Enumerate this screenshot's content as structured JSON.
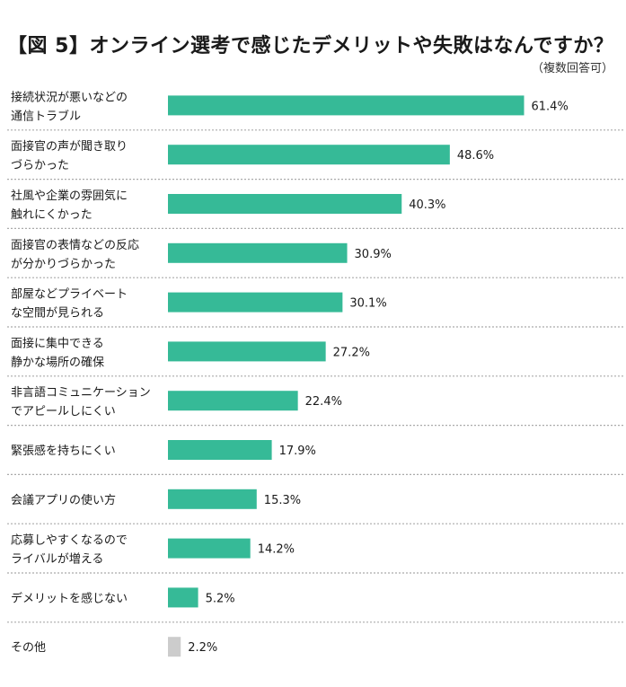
{
  "title": "【図 5】オンライン選考で感じたデメリットや失敗はなんですか？",
  "note": "（複数回答可）",
  "colors": {
    "bar": "#36ba97",
    "bar_other": "#cccccc",
    "divider": "#aaaaaa",
    "text": "#1a1a1a"
  },
  "chart_data": {
    "type": "bar",
    "orientation": "horizontal",
    "title": "【図 5】オンライン選考で感じたデメリットや失敗はなんですか？",
    "xlim": [
      0,
      70
    ],
    "value_suffix": "%",
    "categories": [
      [
        "接続状況が悪いなどの",
        "通信トラブル"
      ],
      [
        "面接官の声が聞き取り",
        "づらかった"
      ],
      [
        "社風や企業の雰囲気に",
        "触れにくかった"
      ],
      [
        "面接官の表情などの反応",
        "が分かりづらかった"
      ],
      [
        "部屋などプライベート",
        "な空間が見られる"
      ],
      [
        "面接に集中できる",
        "静かな場所の確保"
      ],
      [
        "非言語コミュニケーション",
        "でアピールしにくい"
      ],
      [
        "緊張感を持ちにくい"
      ],
      [
        "会議アプリの使い方"
      ],
      [
        "応募しやすくなるので",
        "ライバルが増える"
      ],
      [
        "デメリットを感じない"
      ],
      [
        "その他"
      ]
    ],
    "values": [
      61.4,
      48.6,
      40.3,
      30.9,
      30.1,
      27.2,
      22.4,
      17.9,
      15.3,
      14.2,
      5.2,
      2.2
    ],
    "labels": [
      "61.4%",
      "48.6%",
      "40.3%",
      "30.9%",
      "30.1%",
      "27.2%",
      "22.4%",
      "17.9%",
      "15.3%",
      "14.2%",
      "5.2%",
      "2.2%"
    ]
  }
}
